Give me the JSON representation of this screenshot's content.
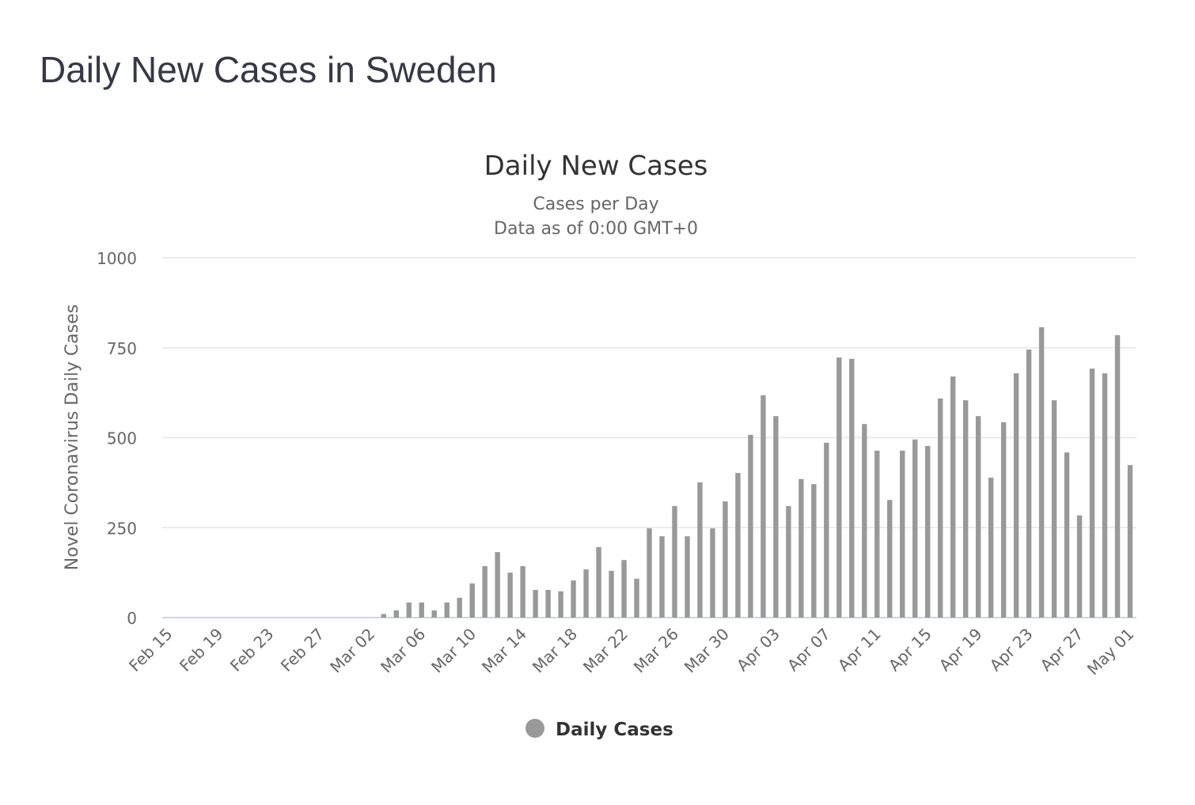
{
  "page_title": "Daily New Cases in Sweden",
  "chart_data": {
    "type": "bar",
    "title": "Daily New Cases",
    "subtitle": "Cases per Day",
    "note": "Data as of 0:00 GMT+0",
    "y_label": "Novel Coronavirus Daily Cases",
    "categories": [
      "Feb 15",
      null,
      null,
      null,
      "Feb 19",
      null,
      null,
      null,
      "Feb 23",
      null,
      null,
      null,
      "Feb 27",
      null,
      null,
      null,
      "Mar 02",
      null,
      null,
      null,
      "Mar 06",
      null,
      null,
      null,
      "Mar 10",
      null,
      null,
      null,
      "Mar 14",
      null,
      null,
      null,
      "Mar 18",
      null,
      null,
      null,
      "Mar 22",
      null,
      null,
      null,
      "Mar 26",
      null,
      null,
      null,
      "Mar 30",
      null,
      null,
      null,
      "Apr 03",
      null,
      null,
      null,
      "Apr 07",
      null,
      null,
      null,
      "Apr 11",
      null,
      null,
      null,
      "Apr 15",
      null,
      null,
      null,
      "Apr 19",
      null,
      null,
      null,
      "Apr 23",
      null,
      null,
      null,
      "Apr 27",
      null,
      null,
      null,
      "May 01"
    ],
    "series": [
      {
        "name": "Daily Cases",
        "color": "#999999",
        "values": [
          0,
          0,
          0,
          0,
          0,
          0,
          0,
          0,
          0,
          0,
          0,
          0,
          0,
          0,
          0,
          0,
          0,
          10,
          20,
          42,
          42,
          20,
          42,
          55,
          95,
          143,
          182,
          125,
          143,
          77,
          77,
          73,
          103,
          134,
          196,
          130,
          160,
          108,
          248,
          226,
          310,
          226,
          376,
          248,
          323,
          402,
          508,
          618,
          560,
          310,
          385,
          371,
          486,
          723,
          719,
          538,
          464,
          327,
          464,
          495,
          477,
          609,
          670,
          604,
          560,
          389,
          543,
          679,
          745,
          807,
          604,
          459,
          284,
          692,
          679,
          785,
          424
        ]
      }
    ],
    "ylim": [
      0,
      1000
    ],
    "yticks": [
      0,
      250,
      500,
      750,
      1000
    ],
    "grid": true
  }
}
